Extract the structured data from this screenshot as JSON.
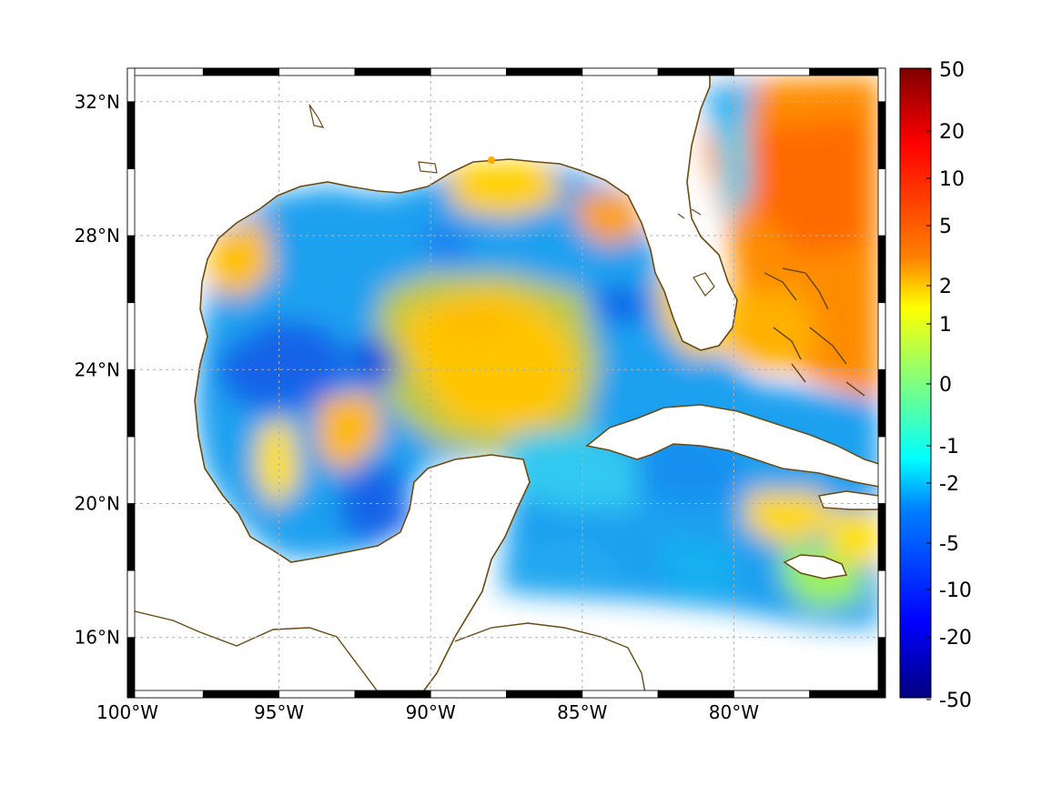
{
  "map": {
    "lon_range": [
      -100,
      -75
    ],
    "lat_range": [
      14.2,
      33
    ],
    "lon_ticks": [
      {
        "value": -100,
        "label": "100°W"
      },
      {
        "value": -95,
        "label": "95°W"
      },
      {
        "value": -90,
        "label": "90°W"
      },
      {
        "value": -85,
        "label": "85°W"
      },
      {
        "value": -80,
        "label": "80°W"
      }
    ],
    "lat_ticks": [
      {
        "value": 32,
        "label": "32°N"
      },
      {
        "value": 28,
        "label": "28°N"
      },
      {
        "value": 24,
        "label": "24°N"
      },
      {
        "value": 20,
        "label": "20°N"
      },
      {
        "value": 16,
        "label": "16°N"
      }
    ],
    "grid": true,
    "coastline_color": "#6b4a12",
    "land_color": "#ffffff",
    "field_colormap": "jet"
  },
  "colorbar": {
    "position": "right",
    "tick_labels": [
      "50",
      "20",
      "10",
      "5",
      "2",
      "1",
      "0",
      "-1",
      "-2",
      "-5",
      "-10",
      "-20",
      "-50"
    ]
  }
}
